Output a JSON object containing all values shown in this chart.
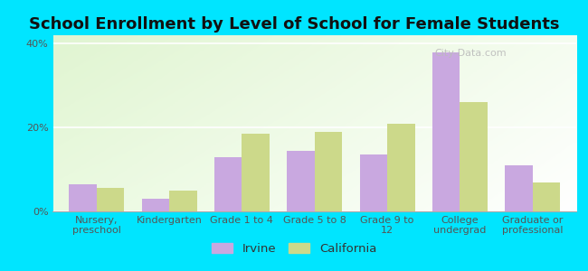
{
  "title": "School Enrollment by Level of School for Female Students",
  "categories": [
    "Nursery,\npreschool",
    "Kindergarten",
    "Grade 1 to 4",
    "Grade 5 to 8",
    "Grade 9 to\n12",
    "College\nundergrad",
    "Graduate or\nprofessional"
  ],
  "irvine_values": [
    6.5,
    3.0,
    13.0,
    14.5,
    13.5,
    38.0,
    11.0
  ],
  "california_values": [
    5.5,
    5.0,
    18.5,
    19.0,
    21.0,
    26.0,
    7.0
  ],
  "irvine_color": "#c9a8e0",
  "california_color": "#ccd98a",
  "background_color": "#00e5ff",
  "ylim": [
    0,
    42
  ],
  "yticks": [
    0,
    20,
    40
  ],
  "ytick_labels": [
    "0%",
    "20%",
    "40%"
  ],
  "legend_labels": [
    "Irvine",
    "California"
  ],
  "watermark": "City-Data.com",
  "bar_width": 0.38,
  "title_fontsize": 13,
  "tick_fontsize": 8,
  "legend_fontsize": 9.5
}
